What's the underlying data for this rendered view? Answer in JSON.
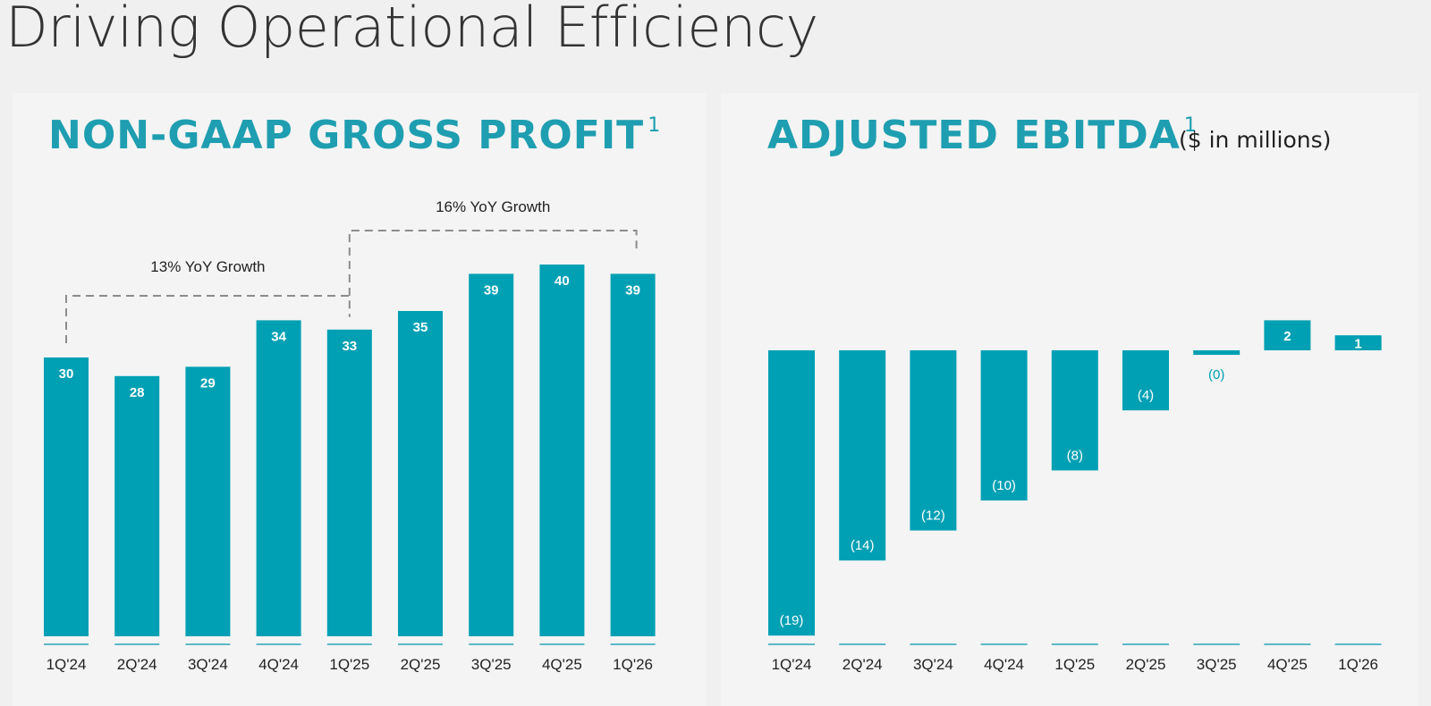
{
  "page": {
    "title": "Driving Operational Efficiency"
  },
  "colors": {
    "bar": "#00a0b4",
    "baseline": "#5db8c6",
    "heading": "#1e9eb0",
    "bracket": "#8c8c8c"
  },
  "chart_data": [
    {
      "type": "bar",
      "title": "NON-GAAP GROSS PROFIT",
      "title_footnote": "1",
      "categories": [
        "1Q'24",
        "2Q'24",
        "3Q'24",
        "4Q'24",
        "1Q'25",
        "2Q'25",
        "3Q'25",
        "4Q'25",
        "1Q'26"
      ],
      "values": [
        30,
        28,
        29,
        34,
        33,
        35,
        39,
        40,
        39
      ],
      "data_labels": [
        "30",
        "28",
        "29",
        "34",
        "33",
        "35",
        "39",
        "40",
        "39"
      ],
      "ylim": [
        0,
        40
      ],
      "grid": false,
      "annotations": [
        {
          "text": "13% YoY Growth",
          "from": "1Q'24",
          "to": "1Q'25"
        },
        {
          "text": "16% YoY Growth",
          "from": "1Q'25",
          "to": "1Q'26"
        }
      ]
    },
    {
      "type": "bar",
      "title": "ADJUSTED EBITDA",
      "title_footnote": "1",
      "units": "($ in millions)",
      "categories": [
        "1Q'24",
        "2Q'24",
        "3Q'24",
        "4Q'24",
        "1Q'25",
        "2Q'25",
        "3Q'25",
        "4Q'25",
        "1Q'26"
      ],
      "values": [
        -19,
        -14,
        -12,
        -10,
        -8,
        -4,
        -0.3,
        2,
        1
      ],
      "data_labels": [
        "(19)",
        "(14)",
        "(12)",
        "(10)",
        "(8)",
        "(4)",
        "(0)",
        "2",
        "1"
      ],
      "ylim": [
        -19,
        2
      ],
      "grid": false
    }
  ]
}
